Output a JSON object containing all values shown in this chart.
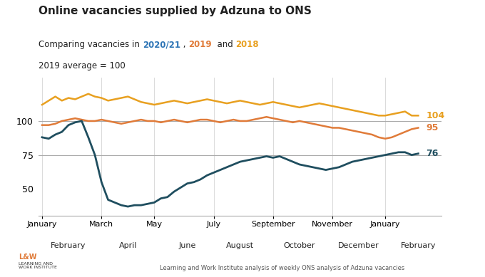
{
  "title": "Online vacancies supplied by Adzuna to ONS",
  "subtitle_parts": [
    "Comparing vacancies in ",
    "2020/21",
    " , ",
    "2019",
    "  and ",
    "2018"
  ],
  "subtitle_colors": [
    "#222222",
    "#2e75b6",
    "#222222",
    "#e07b39",
    "#222222",
    "#e8a020"
  ],
  "subtitle_bold": [
    false,
    true,
    false,
    true,
    false,
    true
  ],
  "line3": "2019 average = 100",
  "source": "Learning and Work Institute analysis of weekly ONS analysis of Adzuna vacancies",
  "color_2020": "#1f4e5f",
  "color_2019": "#e07b39",
  "color_2018": "#e8a020",
  "end_label_2020": "76",
  "end_label_2019": "95",
  "end_label_2018": "104",
  "yticks": [
    50,
    75,
    100
  ],
  "hlines": [
    75,
    100
  ],
  "month_starts": [
    0,
    4,
    9,
    13,
    17,
    22,
    26,
    30,
    35,
    39,
    44,
    48,
    52,
    57
  ],
  "x_major_labels": [
    "January",
    "March",
    "May",
    "July",
    "September",
    "November",
    "January"
  ],
  "x_minor_labels": [
    "February",
    "April",
    "June",
    "August",
    "October",
    "December",
    "February"
  ],
  "data_2020": [
    88,
    87,
    90,
    92,
    97,
    99,
    100,
    88,
    75,
    55,
    42,
    40,
    38,
    37,
    38,
    38,
    39,
    40,
    43,
    44,
    48,
    51,
    54,
    55,
    57,
    60,
    62,
    64,
    66,
    68,
    70,
    71,
    72,
    73,
    74,
    73,
    74,
    72,
    70,
    68,
    67,
    66,
    65,
    64,
    65,
    66,
    68,
    70,
    71,
    72,
    73,
    74,
    75,
    76,
    77,
    77,
    75,
    76
  ],
  "data_2019": [
    97,
    97,
    98,
    100,
    101,
    102,
    101,
    100,
    100,
    101,
    100,
    99,
    98,
    99,
    100,
    101,
    100,
    100,
    99,
    100,
    101,
    100,
    99,
    100,
    101,
    101,
    100,
    99,
    100,
    101,
    100,
    100,
    101,
    102,
    103,
    102,
    101,
    100,
    99,
    100,
    99,
    98,
    97,
    96,
    95,
    95,
    94,
    93,
    92,
    91,
    90,
    88,
    87,
    88,
    90,
    92,
    94,
    95
  ],
  "data_2018": [
    112,
    115,
    118,
    115,
    117,
    116,
    118,
    120,
    118,
    117,
    115,
    116,
    117,
    118,
    116,
    114,
    113,
    112,
    113,
    114,
    115,
    114,
    113,
    114,
    115,
    116,
    115,
    114,
    113,
    114,
    115,
    114,
    113,
    112,
    113,
    114,
    113,
    112,
    111,
    110,
    111,
    112,
    113,
    112,
    111,
    110,
    109,
    108,
    107,
    106,
    105,
    104,
    104,
    105,
    106,
    107,
    104,
    104
  ]
}
